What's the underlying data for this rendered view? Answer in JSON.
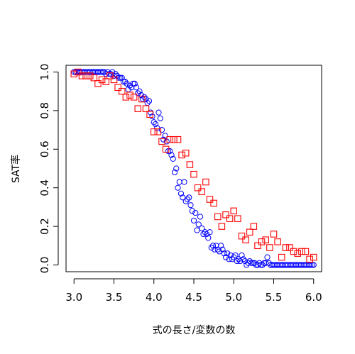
{
  "chart_data": {
    "type": "scatter",
    "xlabel": "式の長さ/変数の数",
    "ylabel": "SAT率",
    "xlim": [
      2.9,
      6.1
    ],
    "ylim": [
      -0.035,
      1.035
    ],
    "grid": false,
    "x_ticks": [
      "3.0",
      "3.5",
      "4.0",
      "4.5",
      "5.0",
      "5.5",
      "6.0"
    ],
    "y_ticks": [
      "0.0",
      "0.2",
      "0.4",
      "0.6",
      "0.8",
      "1.0"
    ],
    "series": [
      {
        "marker": "circle",
        "color": "#0000ff",
        "points": [
          [
            3.0,
            1.0
          ],
          [
            3.02,
            1.0
          ],
          [
            3.04,
            1.0
          ],
          [
            3.06,
            1.0
          ],
          [
            3.08,
            1.0
          ],
          [
            3.1,
            1.0
          ],
          [
            3.12,
            1.0
          ],
          [
            3.14,
            1.0
          ],
          [
            3.16,
            1.0
          ],
          [
            3.18,
            1.0
          ],
          [
            3.2,
            1.0
          ],
          [
            3.22,
            1.0
          ],
          [
            3.24,
            1.0
          ],
          [
            3.26,
            1.0
          ],
          [
            3.28,
            1.0
          ],
          [
            3.3,
            1.0
          ],
          [
            3.32,
            1.0
          ],
          [
            3.34,
            1.0
          ],
          [
            3.36,
            1.0
          ],
          [
            3.38,
            1.0
          ],
          [
            3.4,
            0.99
          ],
          [
            3.42,
            1.0
          ],
          [
            3.44,
            0.99
          ],
          [
            3.46,
            0.99
          ],
          [
            3.48,
            1.0
          ],
          [
            3.5,
            0.98
          ],
          [
            3.52,
            0.99
          ],
          [
            3.54,
            0.98
          ],
          [
            3.56,
            0.97
          ],
          [
            3.58,
            0.97
          ],
          [
            3.6,
            0.97
          ],
          [
            3.62,
            0.95
          ],
          [
            3.64,
            0.95
          ],
          [
            3.66,
            0.94
          ],
          [
            3.68,
            0.91
          ],
          [
            3.7,
            0.93
          ],
          [
            3.72,
            0.92
          ],
          [
            3.74,
            0.94
          ],
          [
            3.76,
            0.94
          ],
          [
            3.78,
            0.92
          ],
          [
            3.8,
            0.89
          ],
          [
            3.82,
            0.9
          ],
          [
            3.84,
            0.88
          ],
          [
            3.86,
            0.86
          ],
          [
            3.88,
            0.87
          ],
          [
            3.9,
            0.86
          ],
          [
            3.92,
            0.84
          ],
          [
            3.94,
            0.85
          ],
          [
            3.96,
            0.79
          ],
          [
            3.98,
            0.77
          ],
          [
            4.0,
            0.74
          ],
          [
            4.02,
            0.73
          ],
          [
            4.04,
            0.71
          ],
          [
            4.06,
            0.79
          ],
          [
            4.08,
            0.76
          ],
          [
            4.1,
            0.7
          ],
          [
            4.12,
            0.65
          ],
          [
            4.14,
            0.67
          ],
          [
            4.16,
            0.64
          ],
          [
            4.18,
            0.59
          ],
          [
            4.2,
            0.59
          ],
          [
            4.22,
            0.57
          ],
          [
            4.24,
            0.55
          ],
          [
            4.26,
            0.48
          ],
          [
            4.28,
            0.5
          ],
          [
            4.3,
            0.4
          ],
          [
            4.32,
            0.43
          ],
          [
            4.34,
            0.37
          ],
          [
            4.36,
            0.35
          ],
          [
            4.38,
            0.43
          ],
          [
            4.4,
            0.33
          ],
          [
            4.42,
            0.34
          ],
          [
            4.44,
            0.35
          ],
          [
            4.46,
            0.31
          ],
          [
            4.48,
            0.28
          ],
          [
            4.5,
            0.23
          ],
          [
            4.52,
            0.27
          ],
          [
            4.54,
            0.18
          ],
          [
            4.56,
            0.21
          ],
          [
            4.58,
            0.25
          ],
          [
            4.6,
            0.19
          ],
          [
            4.62,
            0.16
          ],
          [
            4.64,
            0.17
          ],
          [
            4.66,
            0.16
          ],
          [
            4.68,
            0.14
          ],
          [
            4.7,
            0.17
          ],
          [
            4.72,
            0.09
          ],
          [
            4.74,
            0.1
          ],
          [
            4.76,
            0.08
          ],
          [
            4.78,
            0.1
          ],
          [
            4.8,
            0.08
          ],
          [
            4.82,
            0.07
          ],
          [
            4.84,
            0.1
          ],
          [
            4.86,
            0.08
          ],
          [
            4.88,
            0.06
          ],
          [
            4.9,
            0.04
          ],
          [
            4.92,
            0.06
          ],
          [
            4.94,
            0.03
          ],
          [
            4.96,
            0.05
          ],
          [
            4.98,
            0.03
          ],
          [
            5.0,
            0.04
          ],
          [
            5.02,
            0.05
          ],
          [
            5.04,
            0.02
          ],
          [
            5.06,
            0.03
          ],
          [
            5.08,
            0.02
          ],
          [
            5.1,
            0.05
          ],
          [
            5.12,
            0.03
          ],
          [
            5.14,
            0.02
          ],
          [
            5.16,
            0.0
          ],
          [
            5.18,
            0.01
          ],
          [
            5.2,
            0.02
          ],
          [
            5.22,
            0.01
          ],
          [
            5.24,
            0.01
          ],
          [
            5.26,
            0.01
          ],
          [
            5.28,
            0.0
          ],
          [
            5.3,
            0.0
          ],
          [
            5.32,
            0.01
          ],
          [
            5.34,
            0.0
          ],
          [
            5.36,
            0.0
          ],
          [
            5.38,
            0.01
          ],
          [
            5.4,
            0.01
          ],
          [
            5.42,
            0.04
          ],
          [
            5.44,
            0.01
          ],
          [
            5.46,
            0.0
          ],
          [
            5.48,
            0.0
          ],
          [
            5.5,
            0.0
          ],
          [
            5.52,
            0.0
          ],
          [
            5.54,
            0.0
          ],
          [
            5.56,
            0.0
          ],
          [
            5.58,
            0.0
          ],
          [
            5.6,
            0.0
          ],
          [
            5.62,
            0.0
          ],
          [
            5.64,
            0.0
          ],
          [
            5.66,
            0.0
          ],
          [
            5.68,
            0.0
          ],
          [
            5.7,
            0.0
          ],
          [
            5.72,
            0.0
          ],
          [
            5.74,
            0.0
          ],
          [
            5.76,
            0.0
          ],
          [
            5.78,
            0.0
          ],
          [
            5.8,
            0.0
          ],
          [
            5.82,
            0.0
          ],
          [
            5.84,
            0.0
          ],
          [
            5.86,
            0.0
          ],
          [
            5.88,
            0.0
          ],
          [
            5.9,
            0.0
          ],
          [
            5.92,
            0.0
          ],
          [
            5.94,
            0.0
          ],
          [
            5.96,
            0.0
          ],
          [
            5.98,
            0.0
          ],
          [
            6.0,
            0.0
          ]
        ]
      },
      {
        "marker": "square",
        "color": "#ff0000",
        "points": [
          [
            3.0,
            0.99
          ],
          [
            3.05,
            1.0
          ],
          [
            3.1,
            0.98
          ],
          [
            3.15,
            0.98
          ],
          [
            3.2,
            0.98
          ],
          [
            3.25,
            0.97
          ],
          [
            3.3,
            0.94
          ],
          [
            3.35,
            0.96
          ],
          [
            3.4,
            0.95
          ],
          [
            3.45,
            0.98
          ],
          [
            3.5,
            0.96
          ],
          [
            3.55,
            0.92
          ],
          [
            3.6,
            0.9
          ],
          [
            3.65,
            0.87
          ],
          [
            3.7,
            0.88
          ],
          [
            3.75,
            0.87
          ],
          [
            3.8,
            0.81
          ],
          [
            3.85,
            0.86
          ],
          [
            3.9,
            0.81
          ],
          [
            3.95,
            0.78
          ],
          [
            4.0,
            0.69
          ],
          [
            4.05,
            0.69
          ],
          [
            4.1,
            0.64
          ],
          [
            4.15,
            0.6
          ],
          [
            4.2,
            0.65
          ],
          [
            4.25,
            0.65
          ],
          [
            4.3,
            0.65
          ],
          [
            4.35,
            0.57
          ],
          [
            4.4,
            0.58
          ],
          [
            4.45,
            0.52
          ],
          [
            4.5,
            0.47
          ],
          [
            4.55,
            0.4
          ],
          [
            4.6,
            0.38
          ],
          [
            4.65,
            0.43
          ],
          [
            4.7,
            0.34
          ],
          [
            4.75,
            0.32
          ],
          [
            4.8,
            0.25
          ],
          [
            4.85,
            0.2
          ],
          [
            4.9,
            0.26
          ],
          [
            4.95,
            0.24
          ],
          [
            5.0,
            0.28
          ],
          [
            5.05,
            0.24
          ],
          [
            5.1,
            0.15
          ],
          [
            5.15,
            0.13
          ],
          [
            5.2,
            0.17
          ],
          [
            5.25,
            0.2
          ],
          [
            5.3,
            0.1
          ],
          [
            5.35,
            0.12
          ],
          [
            5.4,
            0.13
          ],
          [
            5.45,
            0.09
          ],
          [
            5.5,
            0.16
          ],
          [
            5.55,
            0.12
          ],
          [
            5.6,
            0.04
          ],
          [
            5.65,
            0.09
          ],
          [
            5.7,
            0.09
          ],
          [
            5.75,
            0.07
          ],
          [
            5.8,
            0.06
          ],
          [
            5.85,
            0.07
          ],
          [
            5.9,
            0.07
          ],
          [
            5.95,
            0.03
          ],
          [
            6.0,
            0.04
          ]
        ]
      }
    ]
  }
}
